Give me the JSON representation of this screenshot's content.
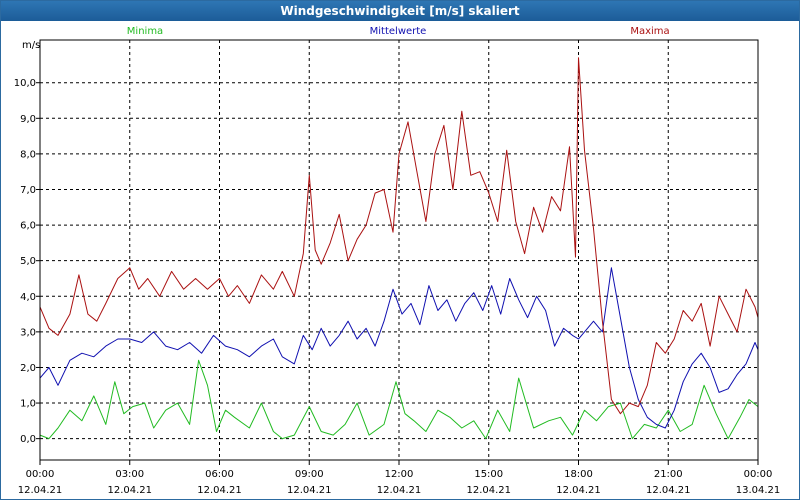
{
  "window": {
    "title": "Windgeschwindigkeit [m/s] skaliert"
  },
  "colors": {
    "minima": "#22bb22",
    "mittelwerte": "#1010b0",
    "maxima": "#aa1111",
    "grid": "#000000"
  },
  "chart_data": {
    "type": "line",
    "title": "Windgeschwindigkeit [m/s] skaliert",
    "ylabel": "m/s",
    "xlabel": "",
    "ylim": [
      -0.6,
      11.2
    ],
    "yticks": [
      "0,0",
      "1,0",
      "2,0",
      "3,0",
      "4,0",
      "5,0",
      "6,0",
      "7,0",
      "8,0",
      "9,0",
      "10,0"
    ],
    "ytick_values": [
      0,
      1,
      2,
      3,
      4,
      5,
      6,
      7,
      8,
      9,
      10
    ],
    "xlim": [
      0,
      24
    ],
    "xticks": [
      {
        "time": "00:00",
        "date": "12.04.21"
      },
      {
        "time": "03:00",
        "date": "12.04.21"
      },
      {
        "time": "06:00",
        "date": "12.04.21"
      },
      {
        "time": "09:00",
        "date": "12.04.21"
      },
      {
        "time": "12:00",
        "date": "12.04.21"
      },
      {
        "time": "15:00",
        "date": "12.04.21"
      },
      {
        "time": "18:00",
        "date": "12.04.21"
      },
      {
        "time": "21:00",
        "date": "12.04.21"
      },
      {
        "time": "00:00",
        "date": "13.04.21"
      }
    ],
    "grid": true,
    "series": [
      {
        "name": "Minima",
        "x": [
          0.0,
          0.3,
          0.6,
          1.0,
          1.4,
          1.8,
          2.2,
          2.5,
          2.8,
          3.1,
          3.5,
          3.8,
          4.2,
          4.6,
          5.0,
          5.3,
          5.6,
          5.9,
          6.2,
          6.5,
          7.0,
          7.4,
          7.8,
          8.1,
          8.5,
          9.0,
          9.4,
          9.8,
          10.2,
          10.6,
          11.0,
          11.5,
          11.9,
          12.2,
          12.5,
          12.9,
          13.3,
          13.7,
          14.1,
          14.5,
          14.9,
          15.3,
          15.7,
          16.0,
          16.5,
          17.0,
          17.4,
          17.8,
          18.2,
          18.6,
          19.0,
          19.4,
          19.8,
          20.2,
          20.6,
          21.0,
          21.4,
          21.8,
          22.2,
          22.6,
          23.0,
          23.4,
          23.7,
          24.0
        ],
        "values": [
          0.1,
          0.0,
          0.3,
          0.8,
          0.5,
          1.2,
          0.4,
          1.6,
          0.7,
          0.9,
          1.0,
          0.3,
          0.8,
          1.0,
          0.4,
          2.2,
          1.5,
          0.2,
          0.8,
          0.6,
          0.3,
          1.0,
          0.2,
          0.0,
          0.1,
          0.9,
          0.2,
          0.1,
          0.4,
          1.0,
          0.1,
          0.4,
          1.6,
          0.7,
          0.5,
          0.2,
          0.8,
          0.6,
          0.3,
          0.5,
          0.0,
          0.8,
          0.2,
          1.7,
          0.3,
          0.5,
          0.6,
          0.1,
          0.8,
          0.5,
          0.9,
          1.0,
          0.0,
          0.4,
          0.3,
          0.8,
          0.2,
          0.4,
          1.5,
          0.7,
          0.0,
          0.6,
          1.1,
          0.9
        ]
      },
      {
        "name": "Mittelwerte",
        "x": [
          0.0,
          0.3,
          0.6,
          1.0,
          1.4,
          1.8,
          2.2,
          2.6,
          3.0,
          3.4,
          3.8,
          4.2,
          4.6,
          5.0,
          5.4,
          5.8,
          6.2,
          6.6,
          7.0,
          7.4,
          7.8,
          8.1,
          8.5,
          8.8,
          9.1,
          9.4,
          9.7,
          10.0,
          10.3,
          10.6,
          10.9,
          11.2,
          11.5,
          11.8,
          12.1,
          12.4,
          12.7,
          13.0,
          13.3,
          13.6,
          13.9,
          14.2,
          14.5,
          14.8,
          15.1,
          15.4,
          15.7,
          16.0,
          16.3,
          16.6,
          16.9,
          17.2,
          17.5,
          17.8,
          18.0,
          18.2,
          18.5,
          18.8,
          19.1,
          19.4,
          19.7,
          20.0,
          20.3,
          20.6,
          20.9,
          21.2,
          21.5,
          21.8,
          22.1,
          22.4,
          22.7,
          23.0,
          23.3,
          23.6,
          23.9,
          24.0
        ],
        "values": [
          1.7,
          2.0,
          1.5,
          2.2,
          2.4,
          2.3,
          2.6,
          2.8,
          2.8,
          2.7,
          3.0,
          2.6,
          2.5,
          2.7,
          2.4,
          2.9,
          2.6,
          2.5,
          2.3,
          2.6,
          2.8,
          2.3,
          2.1,
          2.9,
          2.5,
          3.1,
          2.6,
          2.9,
          3.3,
          2.8,
          3.1,
          2.6,
          3.3,
          4.2,
          3.5,
          3.8,
          3.2,
          4.3,
          3.6,
          3.9,
          3.3,
          3.8,
          4.1,
          3.6,
          4.3,
          3.5,
          4.5,
          3.9,
          3.4,
          4.0,
          3.6,
          2.6,
          3.1,
          2.9,
          2.8,
          3.0,
          3.3,
          3.0,
          4.8,
          3.4,
          2.0,
          1.1,
          0.6,
          0.4,
          0.3,
          0.8,
          1.6,
          2.1,
          2.4,
          2.0,
          1.3,
          1.4,
          1.8,
          2.1,
          2.7,
          2.5
        ]
      },
      {
        "name": "Maxima",
        "x": [
          0.0,
          0.3,
          0.6,
          1.0,
          1.3,
          1.6,
          1.9,
          2.2,
          2.6,
          3.0,
          3.3,
          3.6,
          4.0,
          4.4,
          4.8,
          5.2,
          5.6,
          6.0,
          6.3,
          6.6,
          7.0,
          7.4,
          7.8,
          8.1,
          8.5,
          8.8,
          9.0,
          9.2,
          9.4,
          9.7,
          10.0,
          10.3,
          10.6,
          10.9,
          11.2,
          11.5,
          11.8,
          12.0,
          12.3,
          12.6,
          12.9,
          13.2,
          13.5,
          13.8,
          14.1,
          14.4,
          14.7,
          15.0,
          15.3,
          15.6,
          15.9,
          16.2,
          16.5,
          16.8,
          17.1,
          17.4,
          17.7,
          17.9,
          18.0,
          18.2,
          18.5,
          18.8,
          19.1,
          19.4,
          19.7,
          20.0,
          20.3,
          20.6,
          20.9,
          21.2,
          21.5,
          21.8,
          22.1,
          22.4,
          22.7,
          23.0,
          23.3,
          23.6,
          23.9,
          24.0
        ],
        "values": [
          3.7,
          3.1,
          2.9,
          3.5,
          4.6,
          3.5,
          3.3,
          3.8,
          4.5,
          4.8,
          4.2,
          4.5,
          4.0,
          4.7,
          4.2,
          4.5,
          4.2,
          4.5,
          4.0,
          4.3,
          3.8,
          4.6,
          4.2,
          4.7,
          4.0,
          5.2,
          7.4,
          5.3,
          4.9,
          5.5,
          6.3,
          5.0,
          5.6,
          6.0,
          6.9,
          7.0,
          5.8,
          8.0,
          8.9,
          7.5,
          6.1,
          8.0,
          8.8,
          7.0,
          9.2,
          7.4,
          7.5,
          6.9,
          6.1,
          8.1,
          6.1,
          5.2,
          6.5,
          5.8,
          6.8,
          6.4,
          8.2,
          5.1,
          10.7,
          8.1,
          5.9,
          3.3,
          1.1,
          0.7,
          1.0,
          0.9,
          1.5,
          2.7,
          2.4,
          2.8,
          3.6,
          3.3,
          3.8,
          2.6,
          4.0,
          3.5,
          3.0,
          4.2,
          3.7,
          3.4
        ]
      }
    ]
  }
}
